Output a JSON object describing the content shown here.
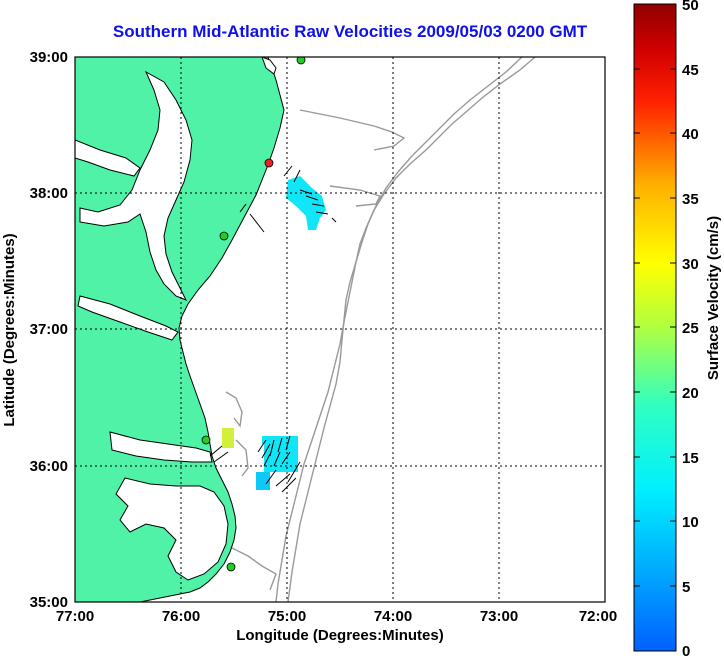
{
  "title": "Southern Mid-Atlantic Raw Velocities 2009/05/03 0200 GMT",
  "axes": {
    "xlabel": "Longitude (Degrees:Minutes)",
    "ylabel": "Latitude (Degrees:Minutes)",
    "x_ticks": [
      "77:00",
      "76:00",
      "75:00",
      "74:00",
      "73:00",
      "72:00"
    ],
    "y_ticks": [
      "39:00",
      "38:00",
      "37:00",
      "36:00",
      "35:00"
    ],
    "x_range_deg_west": [
      77,
      72
    ],
    "y_range_deg_north": [
      35,
      39
    ]
  },
  "colorbar": {
    "label": "Surface Velocity (cm/s)",
    "ticks": [
      "50",
      "45",
      "40",
      "35",
      "30",
      "25",
      "20",
      "15",
      "10",
      "5",
      "0"
    ],
    "range": [
      0,
      50
    ],
    "colormap": "jet"
  },
  "colors": {
    "land": "#50f2a8",
    "title": "#1010e8",
    "bathymetry": "#999999",
    "station_active": "#22cc22",
    "station_inactive": "#ee2222"
  },
  "stations": [
    {
      "name": "station-north",
      "lon": 75.12,
      "lat": 38.96,
      "status": "active"
    },
    {
      "name": "station-delmarva",
      "lon": 75.15,
      "lat": 38.21,
      "status": "inactive"
    },
    {
      "name": "station-eastern-shore",
      "lon": 75.57,
      "lat": 37.67,
      "status": "active"
    },
    {
      "name": "station-outer-banks-north",
      "lon": 75.72,
      "lat": 36.17,
      "status": "active"
    },
    {
      "name": "station-hatteras",
      "lon": 75.52,
      "lat": 35.27,
      "status": "active"
    }
  ],
  "velocity_patches": [
    {
      "name": "patch-delmarva",
      "color": "#10e6f8",
      "speed_cm_s": 10
    },
    {
      "name": "patch-virginia-beach",
      "color": "#10e6f8",
      "speed_cm_s": 10
    },
    {
      "name": "patch-yellow",
      "color": "#d2f03a",
      "speed_cm_s": 23
    },
    {
      "name": "patch-southern",
      "color": "#10c8f8",
      "speed_cm_s": 8
    }
  ]
}
